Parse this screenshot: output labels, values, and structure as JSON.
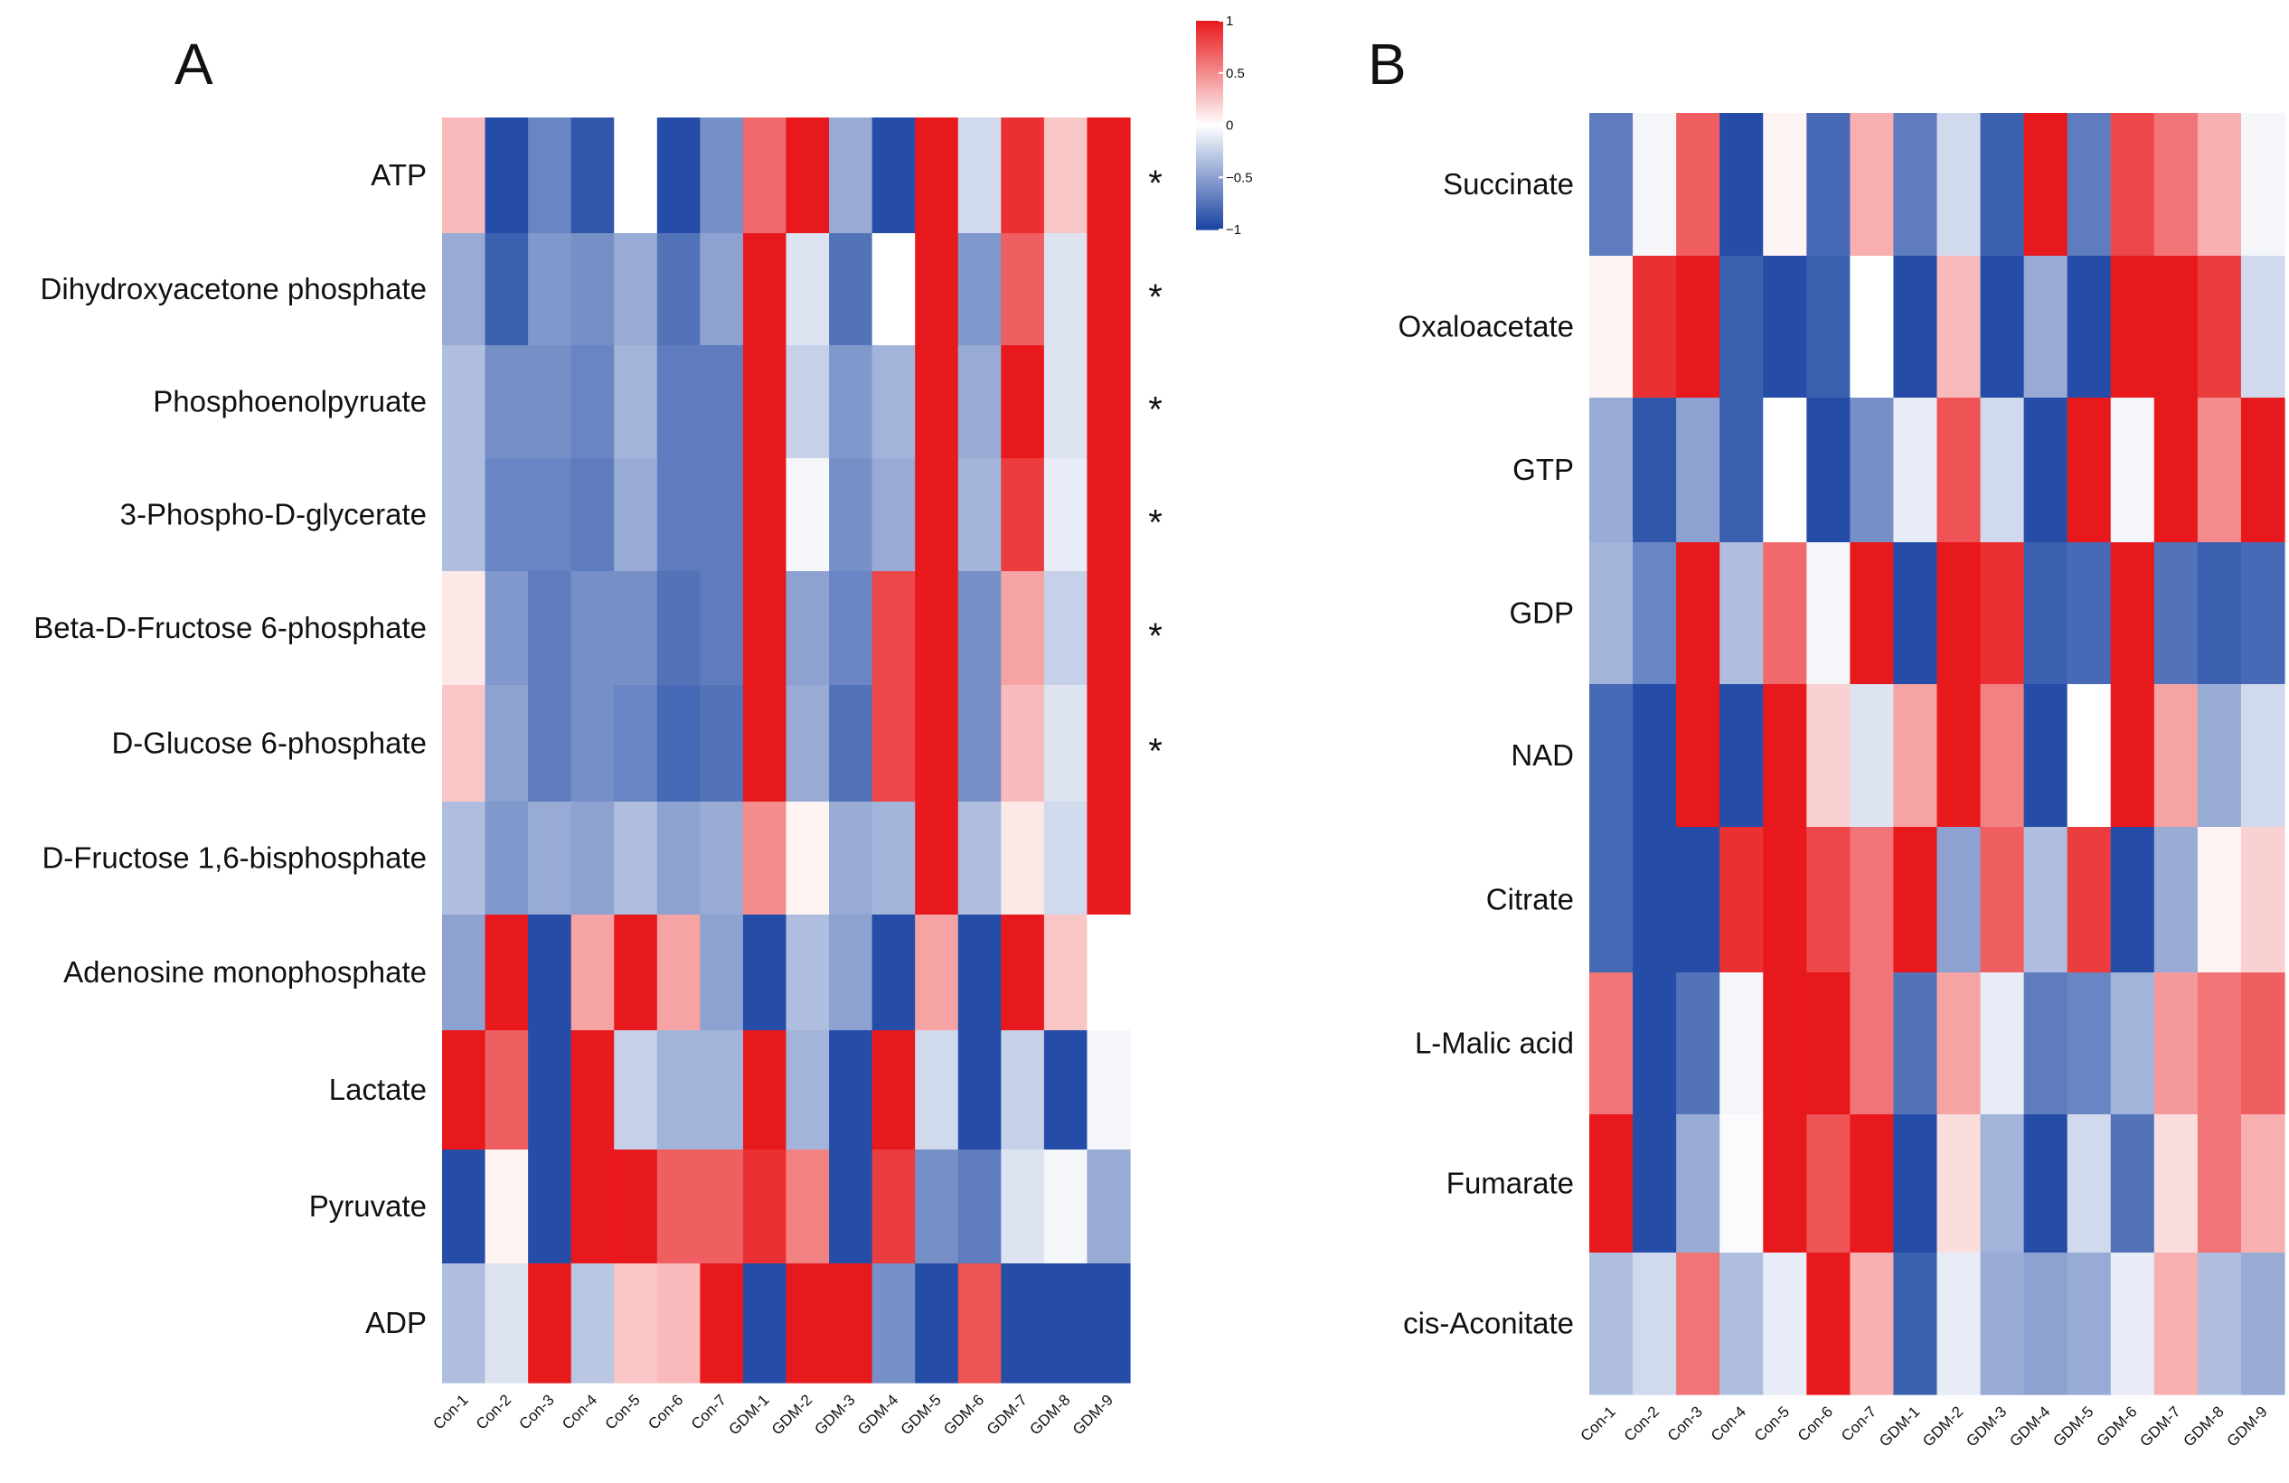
{
  "chart_data": [
    {
      "type": "heatmap",
      "panel": "A",
      "columns": [
        "Con-1",
        "Con-2",
        "Con-3",
        "Con-4",
        "Con-5",
        "Con-6",
        "Con-7",
        "GDM-1",
        "GDM-2",
        "GDM-3",
        "GDM-4",
        "GDM-5",
        "GDM-6",
        "GDM-7",
        "GDM-8",
        "GDM-9"
      ],
      "rows": [
        "ATP",
        "Dihydroxyacetone phosphate",
        "Phosphoenolpyruate",
        "3-Phospho-D-glycerate",
        "Beta-D-Fructose 6-phosphate",
        "D-Glucose 6-phosphate",
        "D-Fructose 1,6-bisphosphate",
        "Adenosine monophosphate",
        "Lactate",
        "Pyruvate",
        "ADP"
      ],
      "significance": [
        "*",
        "*",
        "*",
        "*",
        "*",
        "*",
        "",
        "",
        "",
        "",
        ""
      ],
      "values": [
        [
          0.3,
          -0.95,
          -0.65,
          -0.9,
          0.0,
          -0.95,
          -0.6,
          0.65,
          1.0,
          -0.45,
          -0.95,
          1.0,
          -0.2,
          0.9,
          0.25,
          1.0
        ],
        [
          -0.45,
          -0.85,
          -0.55,
          -0.6,
          -0.45,
          -0.75,
          -0.5,
          1.0,
          -0.15,
          -0.75,
          0.0,
          1.0,
          -0.55,
          0.7,
          -0.15,
          1.0
        ],
        [
          -0.35,
          -0.6,
          -0.6,
          -0.65,
          -0.4,
          -0.7,
          -0.7,
          1.0,
          -0.25,
          -0.55,
          -0.4,
          1.0,
          -0.45,
          1.0,
          -0.15,
          1.0
        ],
        [
          -0.35,
          -0.65,
          -0.65,
          -0.7,
          -0.45,
          -0.7,
          -0.7,
          1.0,
          -0.05,
          -0.6,
          -0.45,
          1.0,
          -0.4,
          0.85,
          -0.1,
          1.0
        ],
        [
          0.1,
          -0.55,
          -0.7,
          -0.6,
          -0.6,
          -0.75,
          -0.7,
          1.0,
          -0.5,
          -0.65,
          0.8,
          1.0,
          -0.6,
          0.4,
          -0.25,
          1.0
        ],
        [
          0.25,
          -0.5,
          -0.7,
          -0.6,
          -0.65,
          -0.8,
          -0.75,
          1.0,
          -0.45,
          -0.75,
          0.8,
          1.0,
          -0.6,
          0.3,
          -0.15,
          1.0
        ],
        [
          -0.35,
          -0.55,
          -0.45,
          -0.5,
          -0.35,
          -0.5,
          -0.45,
          0.5,
          0.05,
          -0.45,
          -0.4,
          1.0,
          -0.35,
          0.1,
          -0.2,
          1.0
        ],
        [
          -0.5,
          1.0,
          -0.95,
          0.4,
          1.0,
          0.4,
          -0.5,
          -0.95,
          -0.35,
          -0.5,
          -0.95,
          0.4,
          -0.95,
          1.0,
          0.25,
          0.0
        ],
        [
          1.0,
          0.7,
          -0.95,
          1.0,
          -0.25,
          -0.4,
          -0.4,
          1.0,
          -0.4,
          -0.95,
          1.0,
          -0.2,
          -0.95,
          -0.25,
          -0.95,
          -0.05
        ],
        [
          -0.95,
          0.05,
          -0.95,
          1.0,
          1.0,
          0.7,
          0.7,
          0.9,
          0.55,
          -0.95,
          0.85,
          -0.6,
          -0.7,
          -0.15,
          -0.05,
          -0.45
        ],
        [
          -0.35,
          -0.15,
          1.0,
          -0.3,
          0.25,
          0.3,
          1.0,
          -0.95,
          1.0,
          1.0,
          -0.6,
          -0.95,
          0.75,
          -0.95,
          -0.95,
          -0.95
        ]
      ],
      "colorbar": {
        "min": -1,
        "max": 1,
        "ticks": [
          1,
          0.5,
          0,
          -0.5,
          -1
        ],
        "tick_labels": [
          "1",
          "0.5",
          "0",
          "−0.5",
          "−1"
        ],
        "low_color": "#1a44a2",
        "mid_color": "#ffffff",
        "high_color": "#e8191c"
      }
    },
    {
      "type": "heatmap",
      "panel": "B",
      "columns": [
        "Con-1",
        "Con-2",
        "Con-3",
        "Con-4",
        "Con-5",
        "Con-6",
        "Con-7",
        "GDM-1",
        "GDM-2",
        "GDM-3",
        "GDM-4",
        "GDM-5",
        "GDM-6",
        "GDM-7",
        "GDM-8",
        "GDM-9"
      ],
      "rows": [
        "Succinate",
        "Oxaloacetate",
        "GTP",
        "GDP",
        "NAD",
        "Citrate",
        "L-Malic acid",
        "Fumarate",
        "cis-Aconitate"
      ],
      "values": [
        [
          -0.7,
          -0.05,
          0.7,
          -0.95,
          0.05,
          -0.8,
          0.35,
          -0.7,
          -0.2,
          -0.85,
          1.0,
          -0.7,
          0.8,
          0.6,
          0.35,
          -0.05
        ],
        [
          0.05,
          0.9,
          1.0,
          -0.85,
          -0.95,
          -0.85,
          0.0,
          -0.95,
          0.3,
          -0.95,
          -0.45,
          -0.95,
          1.0,
          1.0,
          0.85,
          -0.2
        ],
        [
          -0.45,
          -0.9,
          -0.5,
          -0.85,
          0.0,
          -0.95,
          -0.6,
          -0.1,
          0.75,
          -0.2,
          -0.95,
          1.0,
          -0.05,
          1.0,
          0.5,
          1.0
        ],
        [
          -0.4,
          -0.65,
          1.0,
          -0.35,
          0.65,
          -0.05,
          1.0,
          -0.95,
          1.0,
          0.9,
          -0.85,
          -0.8,
          1.0,
          -0.75,
          -0.85,
          -0.8
        ],
        [
          -0.8,
          -0.95,
          1.0,
          -0.95,
          1.0,
          0.2,
          -0.15,
          0.4,
          1.0,
          0.55,
          -0.95,
          0.0,
          1.0,
          0.4,
          -0.45,
          -0.2
        ],
        [
          -0.8,
          -0.95,
          -0.95,
          0.9,
          1.0,
          0.8,
          0.6,
          1.0,
          -0.5,
          0.7,
          -0.35,
          0.85,
          -0.95,
          -0.45,
          0.05,
          0.2
        ],
        [
          0.6,
          -0.95,
          -0.75,
          -0.05,
          1.0,
          1.0,
          0.6,
          -0.75,
          0.4,
          -0.1,
          -0.7,
          -0.65,
          -0.4,
          0.45,
          0.6,
          0.7
        ],
        [
          1.0,
          -0.95,
          -0.45,
          -0.02,
          1.0,
          0.75,
          1.0,
          -0.95,
          0.15,
          -0.4,
          -0.95,
          -0.2,
          -0.75,
          0.15,
          0.6,
          0.35
        ],
        [
          -0.35,
          -0.2,
          0.6,
          -0.35,
          -0.1,
          1.0,
          0.35,
          -0.85,
          -0.1,
          -0.45,
          -0.5,
          -0.45,
          -0.1,
          0.35,
          -0.35,
          -0.45
        ]
      ]
    }
  ]
}
